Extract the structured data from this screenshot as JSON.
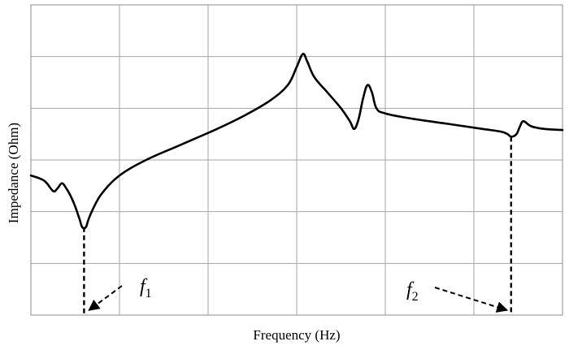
{
  "chart_data": {
    "type": "line",
    "title": "",
    "xlabel": "Frequency  (Hz)",
    "ylabel": "Impedance (Ohm)",
    "xlim": [
      0,
      6
    ],
    "ylim": [
      0,
      6
    ],
    "grid": true,
    "show_tick_labels": false,
    "series": [
      {
        "name": "",
        "color": "#000000",
        "points": [
          [
            0.0,
            2.7
          ],
          [
            0.15,
            2.6
          ],
          [
            0.25,
            2.4
          ],
          [
            0.3,
            2.45
          ],
          [
            0.35,
            2.55
          ],
          [
            0.4,
            2.45
          ],
          [
            0.45,
            2.3
          ],
          [
            0.5,
            2.1
          ],
          [
            0.55,
            1.85
          ],
          [
            0.58,
            1.7
          ],
          [
            0.62,
            1.7
          ],
          [
            0.65,
            1.85
          ],
          [
            0.7,
            2.05
          ],
          [
            0.8,
            2.35
          ],
          [
            1.0,
            2.7
          ],
          [
            1.3,
            3.0
          ],
          [
            1.7,
            3.3
          ],
          [
            2.1,
            3.6
          ],
          [
            2.4,
            3.85
          ],
          [
            2.7,
            4.15
          ],
          [
            2.9,
            4.45
          ],
          [
            3.0,
            4.8
          ],
          [
            3.07,
            5.05
          ],
          [
            3.12,
            4.9
          ],
          [
            3.2,
            4.6
          ],
          [
            3.35,
            4.3
          ],
          [
            3.5,
            4.0
          ],
          [
            3.6,
            3.75
          ],
          [
            3.65,
            3.6
          ],
          [
            3.7,
            3.8
          ],
          [
            3.75,
            4.2
          ],
          [
            3.8,
            4.45
          ],
          [
            3.85,
            4.3
          ],
          [
            3.9,
            4.0
          ],
          [
            4.0,
            3.9
          ],
          [
            4.3,
            3.8
          ],
          [
            4.7,
            3.7
          ],
          [
            5.1,
            3.6
          ],
          [
            5.3,
            3.55
          ],
          [
            5.38,
            3.5
          ],
          [
            5.42,
            3.45
          ],
          [
            5.48,
            3.5
          ],
          [
            5.52,
            3.65
          ],
          [
            5.56,
            3.75
          ],
          [
            5.65,
            3.65
          ],
          [
            5.8,
            3.6
          ],
          [
            6.0,
            3.58
          ]
        ]
      }
    ],
    "annotations": [
      {
        "label": "f",
        "subscript": "1",
        "marker_x": 0.6,
        "marker_y": 1.7
      },
      {
        "label": "f",
        "subscript": "2",
        "marker_x": 5.42,
        "marker_y": 3.45
      }
    ]
  }
}
